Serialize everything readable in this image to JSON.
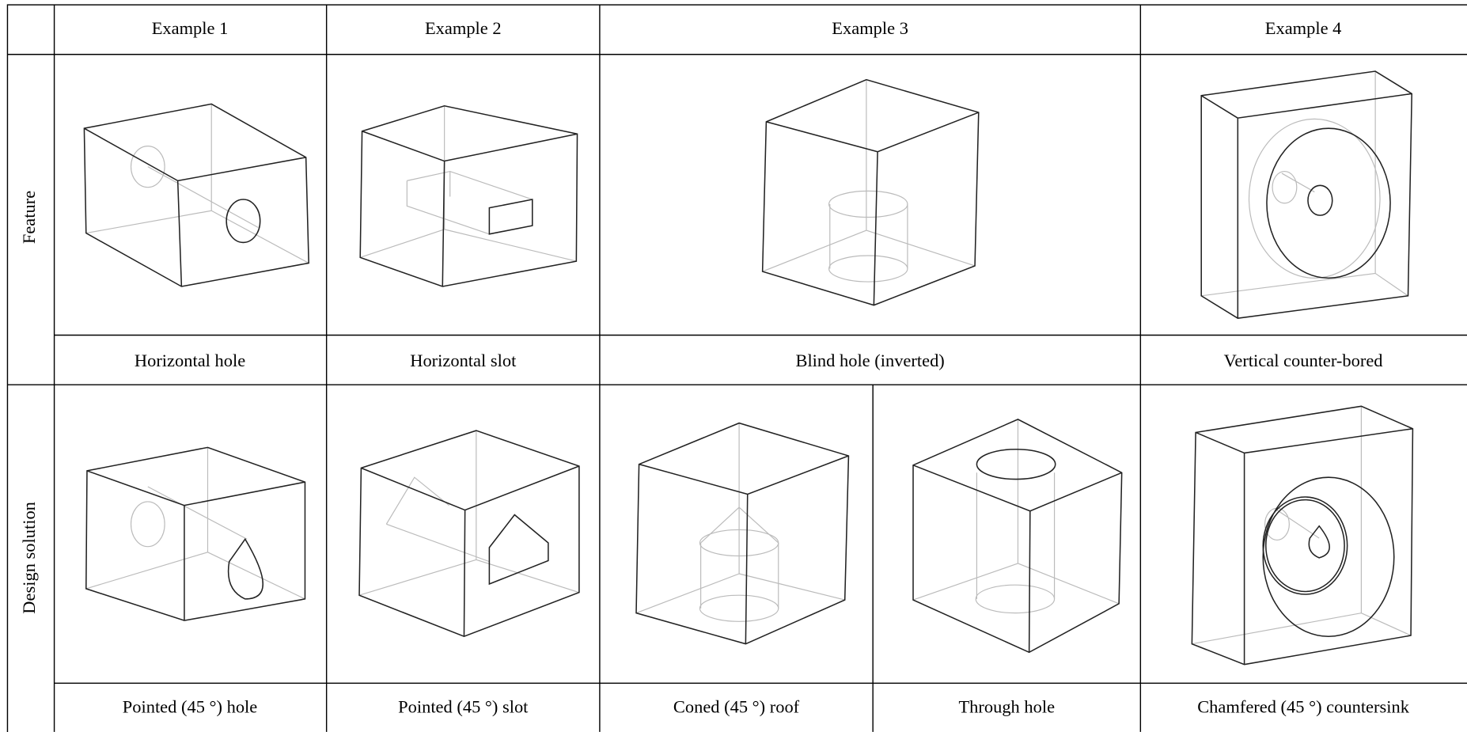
{
  "table": {
    "header": [
      "Example 1",
      "Example 2",
      "Example 3",
      "Example 4"
    ],
    "rows": [
      {
        "label": "Feature",
        "captions": [
          "Horizontal hole",
          "Horizontal slot",
          "Blind hole (inverted)",
          "Vertical counter-bored"
        ]
      },
      {
        "label": "Design solution",
        "captions": [
          "Pointed (45 °) hole",
          "Pointed (45 °) slot",
          "Coned (45 °) roof",
          "Through hole",
          "Chamfered (45 °) countersink"
        ]
      }
    ]
  }
}
